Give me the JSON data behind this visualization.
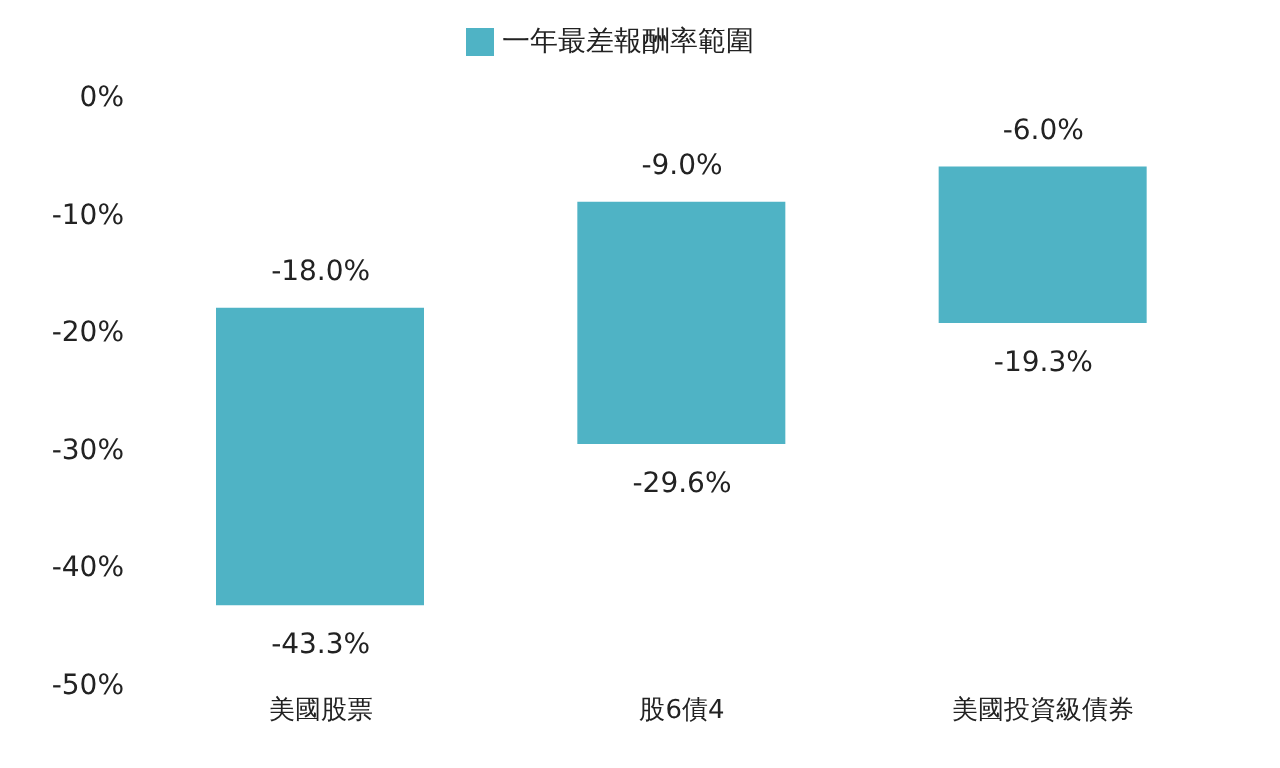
{
  "chart_data": {
    "type": "bar",
    "categories": [
      "美國股票",
      "股6債4",
      "美國投資級債券"
    ],
    "series": [
      {
        "name": "一年最差報酬率範圍",
        "color": "#4fb3c5",
        "values": [
          25.3,
          20.6,
          13.3
        ],
        "base": [
          -43.3,
          -29.6,
          -19.3
        ]
      }
    ],
    "ylim": [
      -50,
      0
    ],
    "yticks": [
      {
        "value": 0,
        "label": "0%"
      },
      {
        "value": -10,
        "label": "-10%"
      },
      {
        "value": -20,
        "label": "-20%"
      },
      {
        "value": -30,
        "label": "-30%"
      },
      {
        "value": -40,
        "label": "-40%"
      },
      {
        "value": -50,
        "label": "-50%"
      }
    ],
    "grid": false,
    "legend": "top",
    "annotations": [
      {
        "text": "-18.0%",
        "x": "美國股票",
        "y": -18.0
      },
      {
        "text": "-43.3%",
        "x": "美國股票",
        "y": -43.3
      },
      {
        "text": "-9.0%",
        "x": "股6債4",
        "y": -9.0
      },
      {
        "text": "-29.6%",
        "x": "股6債4",
        "y": -29.6
      },
      {
        "text": "-6.0%",
        "x": "美國投資級債券",
        "y": -6.0
      },
      {
        "text": "-19.3%",
        "x": "美國投資級債券",
        "y": -19.3
      }
    ]
  }
}
